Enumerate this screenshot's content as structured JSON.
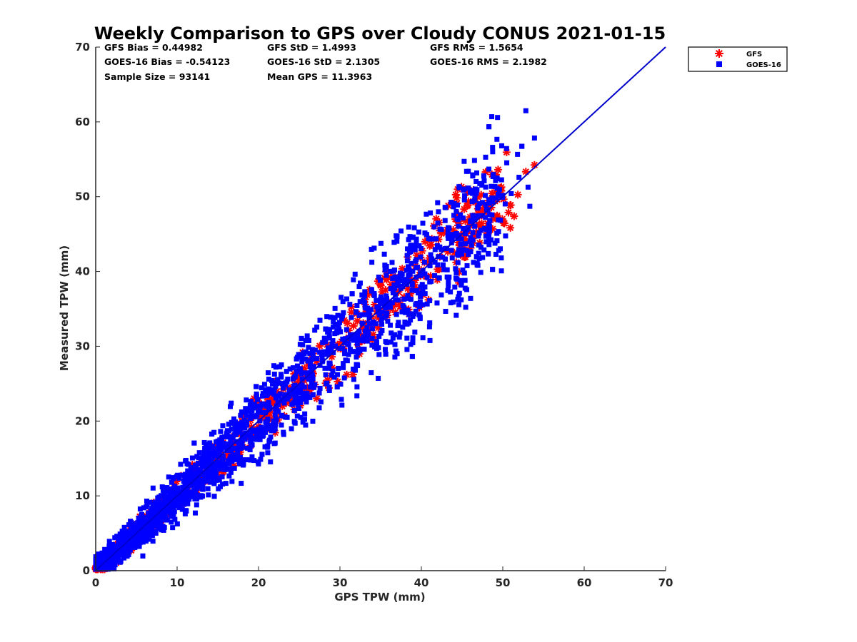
{
  "chart_data": {
    "type": "scatter",
    "title": "Weekly Comparison to GPS over Cloudy CONUS 2021-01-15",
    "xlabel": "GPS TPW (mm)",
    "ylabel": "Measured TPW (mm)",
    "xlim": [
      0,
      70
    ],
    "ylim": [
      0,
      70
    ],
    "xticks": [
      "0",
      "10",
      "20",
      "30",
      "40",
      "50",
      "60",
      "70"
    ],
    "yticks": [
      "0",
      "10",
      "20",
      "30",
      "40",
      "50",
      "60",
      "70"
    ],
    "grid": false,
    "legend_position": "outside-top-right",
    "stats": [
      "GFS Bias = 0.44982",
      "GFS StD = 1.4993",
      "GFS RMS = 1.5654",
      "GOES-16 Bias = -0.54123",
      "GOES-16 StD = 2.1305",
      "GOES-16 RMS = 2.1982",
      "Sample Size = 93141",
      "Mean GPS = 11.3963"
    ],
    "series": [
      {
        "name": "GFS",
        "marker": "asterisk",
        "color": "#ff0000"
      },
      {
        "name": "GOES-16",
        "marker": "square",
        "color": "#0000ff"
      }
    ],
    "reference_line": {
      "x": [
        0,
        70
      ],
      "y": [
        0,
        70
      ],
      "color": "#0000cc"
    }
  }
}
